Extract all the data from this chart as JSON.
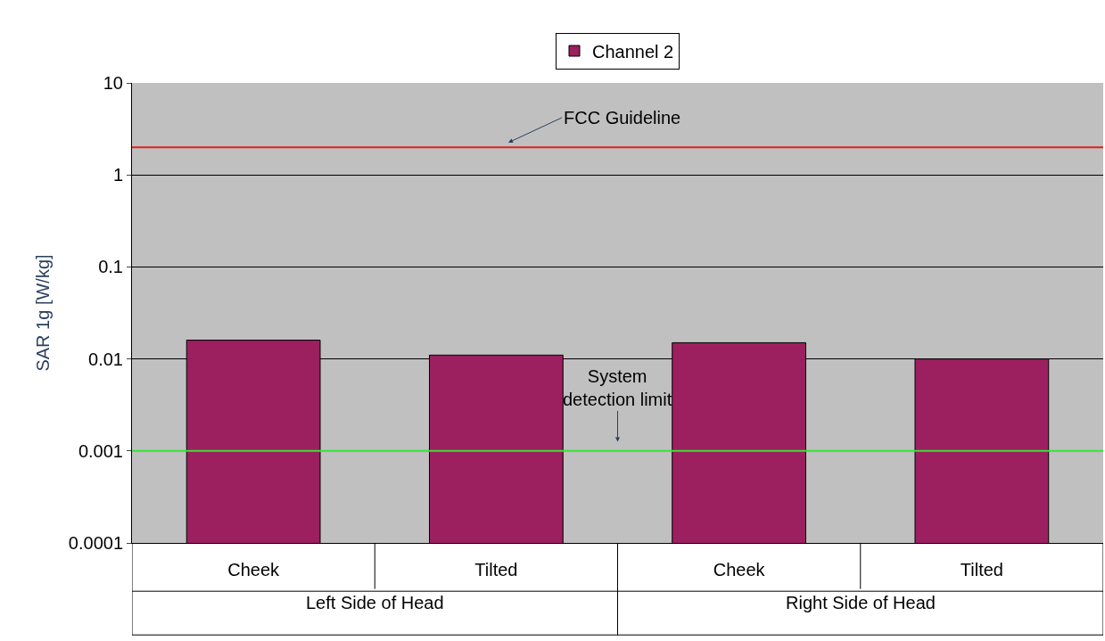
{
  "chart_data": {
    "type": "bar",
    "ylabel": "SAR 1g [W/kg]",
    "categories": [
      "Cheek",
      "Tilted",
      "Cheek",
      "Tilted"
    ],
    "series": [
      {
        "name": "Channel 2",
        "color": "#9c1f5f",
        "values": [
          0.016,
          0.011,
          0.015,
          0.01
        ]
      }
    ],
    "log": true,
    "ylim": [
      0.0001,
      10
    ],
    "yticks": [
      0.0001,
      0.001,
      0.01,
      0.1,
      1,
      10
    ],
    "grid": "y",
    "legend": "top",
    "ref_lines": [
      {
        "axis": "y",
        "value": 2,
        "label": "FCC Guideline",
        "color": "#e02020"
      },
      {
        "axis": "y",
        "value": 0.001,
        "label": "System\ndetection limit",
        "color": "#33e633"
      }
    ],
    "annotations": [
      "Left Side of Head",
      "Right Side of Head"
    ]
  }
}
